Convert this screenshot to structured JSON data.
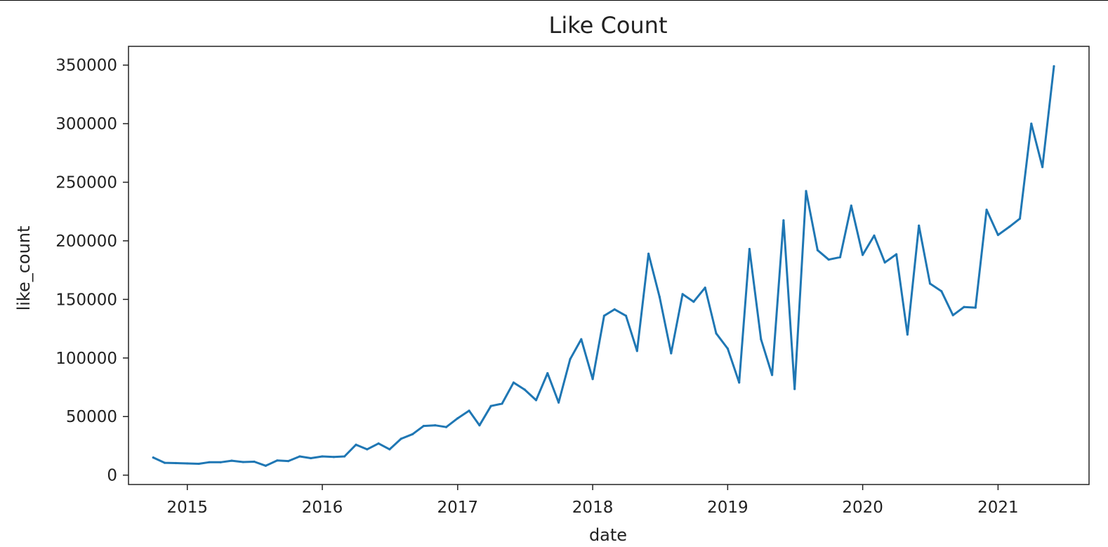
{
  "chart_data": {
    "type": "line",
    "title": "Like Count",
    "xlabel": "date",
    "ylabel": "like_count",
    "x_ticks": [
      "2015",
      "2016",
      "2017",
      "2018",
      "2019",
      "2020",
      "2021"
    ],
    "y_ticks": [
      "0",
      "50000",
      "100000",
      "150000",
      "200000",
      "250000",
      "300000",
      "350000"
    ],
    "xlim": [
      "2014-07-26",
      "2021-09-04"
    ],
    "ylim": [
      -8000,
      366000
    ],
    "grid": false,
    "series": [
      {
        "color": "#1f77b4",
        "points": [
          [
            "2014-10-01",
            15000
          ],
          [
            "2014-11-01",
            10500
          ],
          [
            "2014-12-01",
            10300
          ],
          [
            "2015-01-01",
            10000
          ],
          [
            "2015-02-01",
            9700
          ],
          [
            "2015-03-01",
            11000
          ],
          [
            "2015-04-01",
            11000
          ],
          [
            "2015-05-01",
            12300
          ],
          [
            "2015-06-01",
            11200
          ],
          [
            "2015-07-01",
            11500
          ],
          [
            "2015-08-01",
            8000
          ],
          [
            "2015-09-01",
            12500
          ],
          [
            "2015-10-01",
            12000
          ],
          [
            "2015-11-01",
            16000
          ],
          [
            "2015-12-01",
            14500
          ],
          [
            "2016-01-01",
            16000
          ],
          [
            "2016-02-01",
            15500
          ],
          [
            "2016-03-01",
            16000
          ],
          [
            "2016-04-01",
            26000
          ],
          [
            "2016-05-01",
            22000
          ],
          [
            "2016-06-01",
            27000
          ],
          [
            "2016-07-01",
            22000
          ],
          [
            "2016-08-01",
            31000
          ],
          [
            "2016-09-01",
            35000
          ],
          [
            "2016-10-01",
            42000
          ],
          [
            "2016-11-01",
            42500
          ],
          [
            "2016-12-01",
            41000
          ],
          [
            "2017-01-01",
            48500
          ],
          [
            "2017-02-01",
            55000
          ],
          [
            "2017-03-01",
            42500
          ],
          [
            "2017-04-01",
            59000
          ],
          [
            "2017-05-01",
            61000
          ],
          [
            "2017-06-01",
            79000
          ],
          [
            "2017-07-01",
            73000
          ],
          [
            "2017-08-01",
            64000
          ],
          [
            "2017-09-01",
            87000
          ],
          [
            "2017-10-01",
            62000
          ],
          [
            "2017-11-01",
            99000
          ],
          [
            "2017-12-01",
            116000
          ],
          [
            "2018-01-01",
            82000
          ],
          [
            "2018-02-01",
            136000
          ],
          [
            "2018-03-01",
            141500
          ],
          [
            "2018-04-01",
            136000
          ],
          [
            "2018-05-01",
            106000
          ],
          [
            "2018-06-01",
            189000
          ],
          [
            "2018-07-01",
            152000
          ],
          [
            "2018-08-01",
            104000
          ],
          [
            "2018-09-01",
            154500
          ],
          [
            "2018-10-01",
            148000
          ],
          [
            "2018-11-01",
            160000
          ],
          [
            "2018-12-01",
            121000
          ],
          [
            "2019-01-01",
            108000
          ],
          [
            "2019-02-01",
            79000
          ],
          [
            "2019-03-01",
            193000
          ],
          [
            "2019-04-01",
            116000
          ],
          [
            "2019-05-01",
            85500
          ],
          [
            "2019-06-01",
            217500
          ],
          [
            "2019-07-01",
            73500
          ],
          [
            "2019-08-01",
            242500
          ],
          [
            "2019-09-01",
            192000
          ],
          [
            "2019-10-01",
            184000
          ],
          [
            "2019-11-01",
            186000
          ],
          [
            "2019-12-01",
            230000
          ],
          [
            "2020-01-01",
            188000
          ],
          [
            "2020-02-01",
            204500
          ],
          [
            "2020-03-01",
            181500
          ],
          [
            "2020-04-01",
            188500
          ],
          [
            "2020-05-01",
            120000
          ],
          [
            "2020-06-01",
            213000
          ],
          [
            "2020-07-01",
            163500
          ],
          [
            "2020-08-01",
            157000
          ],
          [
            "2020-09-01",
            136500
          ],
          [
            "2020-10-01",
            143500
          ],
          [
            "2020-11-01",
            143000
          ],
          [
            "2020-12-01",
            226500
          ],
          [
            "2021-01-01",
            205000
          ],
          [
            "2021-02-01",
            212000
          ],
          [
            "2021-03-01",
            219000
          ],
          [
            "2021-04-01",
            300000
          ],
          [
            "2021-05-01",
            263000
          ],
          [
            "2021-06-01",
            349000
          ]
        ]
      }
    ]
  }
}
